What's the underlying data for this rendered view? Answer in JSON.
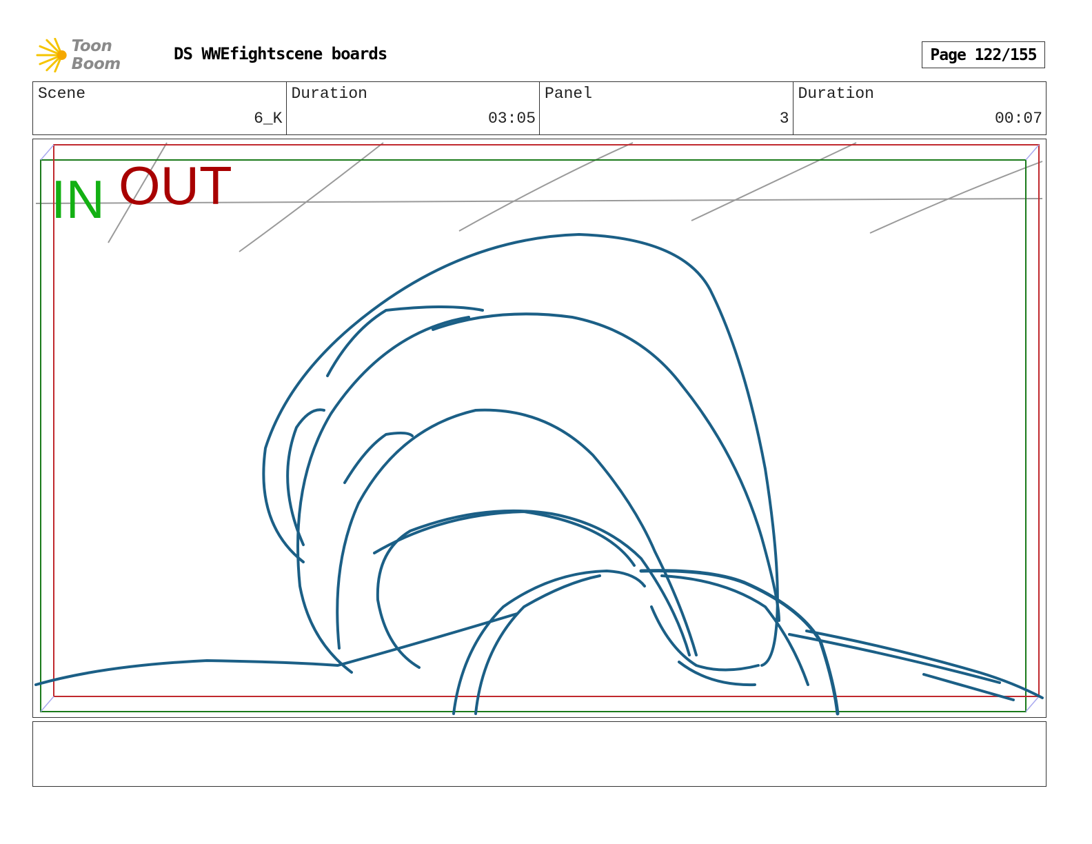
{
  "header": {
    "logo_text": "Toon Boom",
    "title": "DS WWEfightscene boards",
    "page_label": "Page 122/155"
  },
  "info": [
    {
      "label": "Scene",
      "value": "6_K"
    },
    {
      "label": "Duration",
      "value": "03:05"
    },
    {
      "label": "Panel",
      "value": "3"
    },
    {
      "label": "Duration",
      "value": "00:07"
    }
  ],
  "panel": {
    "in_label": "IN",
    "out_label": "OUT",
    "colors": {
      "stroke": "#1b5f86",
      "in_frame": "#1a7a1a",
      "out_frame": "#c0282d",
      "guide": "#9a9a9a"
    }
  },
  "notes": {
    "text": ""
  }
}
